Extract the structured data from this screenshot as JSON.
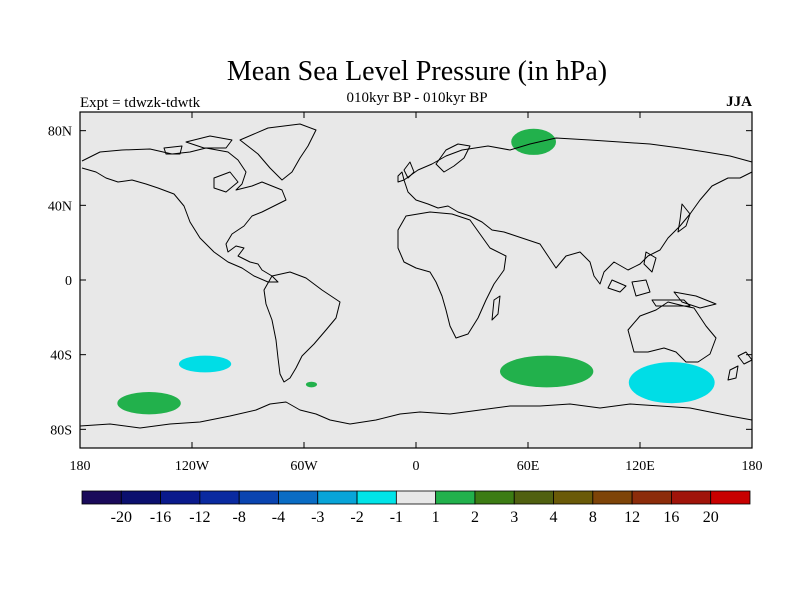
{
  "header": {
    "title": "Mean Sea Level Pressure (in hPa)",
    "expt": "Expt = tdwzk-tdwtk",
    "period": "010kyr BP - 010kyr BP",
    "season": "JJA"
  },
  "map": {
    "lat_labels": [
      "80N",
      "40N",
      "0",
      "40S",
      "80S"
    ],
    "lat_values": [
      80,
      40,
      0,
      -40,
      -80
    ],
    "lon_labels": [
      "180",
      "120W",
      "60W",
      "0",
      "60E",
      "120E",
      "180"
    ],
    "lon_values": [
      -180,
      -120,
      -60,
      0,
      60,
      120,
      180
    ],
    "background_color": "#e8e8e8",
    "anomalies": [
      {
        "name": "north-eurasia-positive",
        "level": "1 to 2",
        "color": "#22b14c",
        "lon": 63,
        "lat": 74,
        "rlon": 12,
        "rlat": 7
      },
      {
        "name": "south-indian-ocean-positive",
        "level": "1 to 2",
        "color": "#22b14c",
        "lon": 70,
        "lat": -49,
        "rlon": 25,
        "rlat": 8.5
      },
      {
        "name": "south-pacific-positive",
        "level": "1 to 2",
        "color": "#22b14c",
        "lon": -143,
        "lat": -66,
        "rlon": 17,
        "rlat": 6
      },
      {
        "name": "south-atlantic-positive-small",
        "level": "1 to 2",
        "color": "#22b14c",
        "lon": -56,
        "lat": -56,
        "rlon": 3,
        "rlat": 1.5
      },
      {
        "name": "south-pacific-negative",
        "level": "-2 to -1",
        "color": "#00dde6",
        "lon": -113,
        "lat": -45,
        "rlon": 14,
        "rlat": 4.5
      },
      {
        "name": "tasman-negative",
        "level": "-2 to -1",
        "color": "#00dde6",
        "lon": 137,
        "lat": -55,
        "rlon": 23,
        "rlat": 11
      }
    ]
  },
  "colorbar": {
    "labels": [
      "-20",
      "-16",
      "-12",
      "-8",
      "-4",
      "-3",
      "-2",
      "-1",
      "1",
      "2",
      "3",
      "4",
      "8",
      "12",
      "16",
      "20"
    ],
    "colors": [
      "#1a0a5a",
      "#0b0f6e",
      "#0a1a8c",
      "#0a2aa0",
      "#0a44b0",
      "#0a6cc4",
      "#08a4d8",
      "#00e4e8",
      "#e8e8e8",
      "#22b14c",
      "#3c7c14",
      "#506010",
      "#6a5a08",
      "#7e4408",
      "#8c2c0a",
      "#a0140a",
      "#c80000"
    ]
  }
}
